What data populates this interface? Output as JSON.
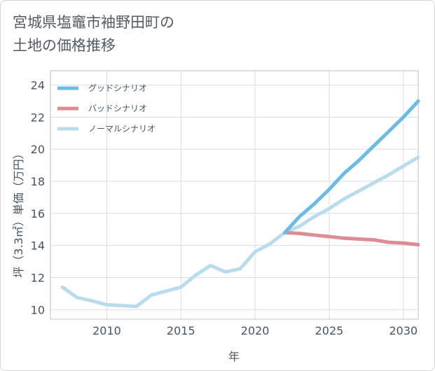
{
  "title_lines": [
    "宮城県塩竈市袖野田町の",
    "土地の価格推移"
  ],
  "chart_data": {
    "type": "line",
    "xlabel": "年",
    "ylabel": "坪（3.3㎡）単価（万円）",
    "xlim": [
      2006.2,
      2031
    ],
    "ylim": [
      9.4,
      24.9
    ],
    "xticks": [
      2010,
      2015,
      2020,
      2025,
      2030
    ],
    "yticks": [
      10,
      12,
      14,
      16,
      18,
      20,
      22,
      24
    ],
    "grid": true,
    "legend_position": "top-left",
    "series": [
      {
        "name": "グッドシナリオ",
        "color": "#6bbbe8",
        "x": [
          2022,
          2023,
          2024,
          2025,
          2026,
          2027,
          2028,
          2029,
          2030,
          2031
        ],
        "y": [
          14.8,
          15.8,
          16.6,
          17.5,
          18.5,
          19.3,
          20.2,
          21.1,
          22.0,
          23.0
        ]
      },
      {
        "name": "バッドシナリオ",
        "color": "#dc8c93",
        "x": [
          2022,
          2023,
          2024,
          2025,
          2026,
          2027,
          2028,
          2029,
          2030,
          2031
        ],
        "y": [
          14.8,
          14.75,
          14.65,
          14.55,
          14.45,
          14.4,
          14.35,
          14.2,
          14.15,
          14.05
        ]
      },
      {
        "name": "ノーマルシナリオ",
        "color": "#b9dced",
        "x": [
          2007,
          2008,
          2009,
          2010,
          2011,
          2012,
          2013,
          2014,
          2015,
          2016,
          2017,
          2018,
          2019,
          2020,
          2021,
          2022,
          2023,
          2024,
          2025,
          2026,
          2027,
          2028,
          2029,
          2030,
          2031
        ],
        "y": [
          11.4,
          10.75,
          10.55,
          10.3,
          10.25,
          10.2,
          10.9,
          11.15,
          11.4,
          12.15,
          12.75,
          12.35,
          12.55,
          13.6,
          14.1,
          14.8,
          15.2,
          15.8,
          16.3,
          16.9,
          17.4,
          17.9,
          18.4,
          18.95,
          19.5
        ]
      }
    ]
  }
}
